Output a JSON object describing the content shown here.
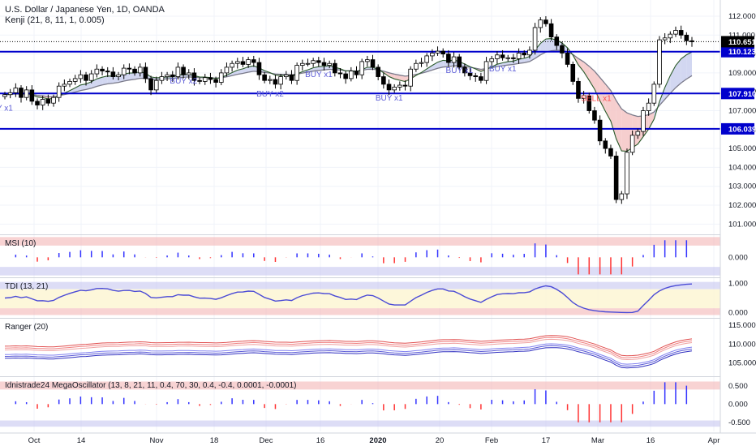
{
  "header": {
    "symbol": "U.S. Dollar / Japanese Yen, 1D, OANDA",
    "indicator": "Kenji (21, 8, 11, 1, 0.005)"
  },
  "colors": {
    "up": "#ffffff",
    "down": "#000000",
    "wick": "#000000",
    "level": "#0000cc",
    "price_box": "#000000",
    "ma_slow": "#7a7a8a",
    "ma_fast": "#2a5a2a",
    "cloud_bull": "#cdd3ef",
    "cloud_bear": "#f5c9c9",
    "band_red": "#f4b6b6",
    "band_blue": "#c6c6f0",
    "hist_pos": "#3333ff",
    "hist_neg": "#ff3333"
  },
  "chart_data": {
    "type": "candlestick",
    "title": "U.S. Dollar / Japanese Yen, 1D, OANDA",
    "price_axis": {
      "ylim": [
        100.5,
        112.6
      ],
      "ticks": [
        "101.000",
        "102.000",
        "103.000",
        "104.000",
        "105.000",
        "106.000",
        "107.000",
        "108.000",
        "109.000",
        "110.000",
        "111.000",
        "112.000"
      ]
    },
    "x_labels": [
      "Oct",
      "14",
      "Nov",
      "18",
      "Dec",
      "16",
      "2020",
      "20",
      "Feb",
      "17",
      "Mar",
      "16",
      "Apr"
    ],
    "levels": [
      {
        "label": "110.123",
        "value": 110.123
      },
      {
        "label": "107.910",
        "value": 107.91
      },
      {
        "label": "106.039",
        "value": 106.039
      }
    ],
    "last_price": {
      "label": "110.651",
      "value": 110.651
    },
    "signals": [
      {
        "text": "Y x1"
      },
      {
        "text": "BUY x2"
      },
      {
        "text": "BUY x2"
      },
      {
        "text": "BUY x1"
      },
      {
        "text": "BUY x1"
      },
      {
        "text": "BUY x1"
      },
      {
        "text": "BUY x1"
      },
      {
        "text": "SELL x1"
      }
    ],
    "closes": [
      107.85,
      107.95,
      108.2,
      107.7,
      108.1,
      107.5,
      107.3,
      107.6,
      107.4,
      107.7,
      108.3,
      108.4,
      108.55,
      108.7,
      108.9,
      108.6,
      108.95,
      109.2,
      109.1,
      109.05,
      108.8,
      108.9,
      109.25,
      109.2,
      109.0,
      109.3,
      108.7,
      108.1,
      108.6,
      108.8,
      108.9,
      108.8,
      109.3,
      108.9,
      109.0,
      108.6,
      108.55,
      108.75,
      108.65,
      108.5,
      109.0,
      109.3,
      109.5,
      109.6,
      109.45,
      109.7,
      109.55,
      108.9,
      108.6,
      108.65,
      108.4,
      108.8,
      108.9,
      108.6,
      109.4,
      109.5,
      109.5,
      109.65,
      109.55,
      109.4,
      109.5,
      109.0,
      108.95,
      108.7,
      109.1,
      108.9,
      109.6,
      109.7,
      109.3,
      108.8,
      108.4,
      108.1,
      108.25,
      108.35,
      108.3,
      109.2,
      109.5,
      109.55,
      109.9,
      110.05,
      110.15,
      110.0,
      109.55,
      109.85,
      109.3,
      109.0,
      108.85,
      108.8,
      108.6,
      109.6,
      109.75,
      109.95,
      109.8,
      109.8,
      109.75,
      110.05,
      109.95,
      110.2,
      111.4,
      111.8,
      111.6,
      110.9,
      110.45,
      110.05,
      109.45,
      108.55,
      107.65,
      107.8,
      107.0,
      106.5,
      105.4,
      105.0,
      104.6,
      102.3,
      102.6,
      104.8,
      105.7,
      105.9,
      107.0,
      107.4,
      108.4,
      110.75,
      110.85,
      111.05,
      111.25,
      111.0,
      110.7,
      110.65
    ],
    "msi": {
      "ylim": [
        -0.9,
        1.0
      ],
      "ticks": [
        "0.000"
      ]
    },
    "tdi": {
      "ylim": [
        -0.15,
        1.15
      ],
      "ticks": [
        "0.000",
        "1.000"
      ]
    },
    "ranger": {
      "ylim": [
        101.5,
        116.5
      ],
      "ticks": [
        "105.000",
        "110.000",
        "115.000"
      ]
    },
    "mega_oscillator": {
      "title": "Idnistrade24 MegaOscillator (13, 8, 21, 11, 0.4, 70, 30, 0.4, -0.4, 0.0001, -0.0001)",
      "ylim": [
        -0.75,
        0.72
      ],
      "ticks": [
        "-0.500",
        "0.000",
        "0.500"
      ]
    },
    "panels": [
      {
        "title": "MSI (10)"
      },
      {
        "title": "TDI (13, 21)"
      },
      {
        "title": "Ranger (20)"
      }
    ]
  }
}
